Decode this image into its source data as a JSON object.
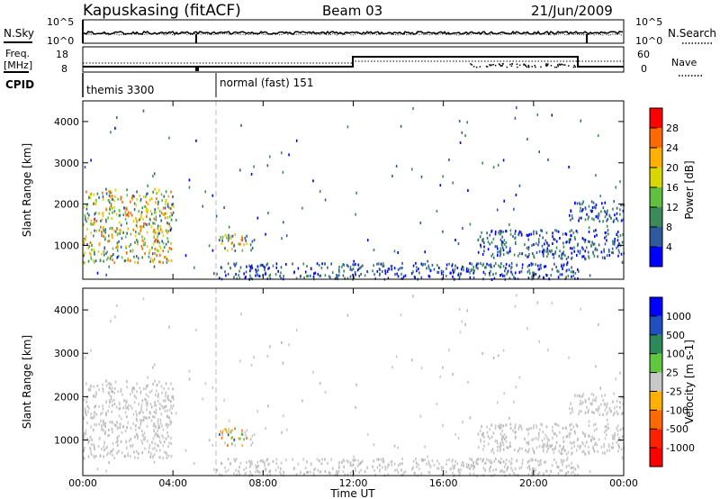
{
  "header": {
    "station": "Kapuskasing (fitACF)",
    "beam": "Beam 03",
    "date": "21/Jun/2009"
  },
  "top_panel": {
    "left_label": "N.Sky",
    "left_ticks": [
      "10^5",
      "10^0"
    ],
    "right_ticks": [
      "10^5",
      "10^0"
    ],
    "right_label": "N.Search"
  },
  "freq_panel": {
    "left_label_line1": "Freq.",
    "left_label_line2": "[MHz]",
    "left_ticks": [
      "18",
      "8"
    ],
    "right_ticks": [
      "60",
      "0"
    ],
    "right_label": "Nave"
  },
  "cpid_panel": {
    "label": "CPID",
    "modes": [
      "themis 3300",
      "normal (fast) 151"
    ]
  },
  "x_axis": {
    "title": "Time UT",
    "ticks": [
      "00:00",
      "04:00",
      "08:00",
      "12:00",
      "16:00",
      "20:00",
      "00:00"
    ]
  },
  "chart_data": [
    {
      "type": "heatmap",
      "name": "power",
      "ylabel": "Slant Range [km]",
      "xlim_hours": [
        0,
        24
      ],
      "ylim_km": [
        180,
        4500
      ],
      "yticks": [
        "4000",
        "3000",
        "2000",
        "1000"
      ],
      "ytick_values": [
        4000,
        3000,
        2000,
        1000
      ],
      "colorbar": {
        "label": "Power [dB]",
        "ticks": [
          "28",
          "24",
          "20",
          "16",
          "12",
          "8",
          "4"
        ],
        "colors": [
          "#ff0000",
          "#ff6a00",
          "#ffb000",
          "#d8d800",
          "#60c040",
          "#3a8a5a",
          "#305aa0",
          "#0000ff"
        ]
      },
      "echo_regions": [
        {
          "t0": 0.0,
          "t1": 4.0,
          "r0": 600,
          "r1": 2400,
          "level": "mixed-high"
        },
        {
          "t0": 6.0,
          "t1": 7.5,
          "r0": 900,
          "r1": 1300,
          "level": "mixed-high"
        },
        {
          "t0": 6.0,
          "t1": 22.0,
          "r0": 180,
          "r1": 600,
          "level": "low"
        },
        {
          "t0": 17.5,
          "t1": 24.0,
          "r0": 700,
          "r1": 1400,
          "level": "low"
        },
        {
          "t0": 21.5,
          "t1": 24.0,
          "r0": 1600,
          "r1": 2100,
          "level": "low"
        }
      ]
    },
    {
      "type": "heatmap",
      "name": "velocity",
      "ylabel": "Slant Range [km]",
      "xlim_hours": [
        0,
        24
      ],
      "ylim_km": [
        180,
        4500
      ],
      "yticks": [
        "4000",
        "3000",
        "2000",
        "1000"
      ],
      "ytick_values": [
        4000,
        3000,
        2000,
        1000
      ],
      "colorbar": {
        "label": "Velocity [m s-1]",
        "ticks": [
          "1000",
          "500",
          "100",
          "25",
          "-25",
          "-100",
          "-500",
          "-1000"
        ],
        "colors": [
          "#0000ff",
          "#2050c0",
          "#2a8a5a",
          "#60c840",
          "#c8c8c8",
          "#ffb000",
          "#ff6a00",
          "#ff2000",
          "#ff0000"
        ]
      },
      "echo_regions": [
        {
          "t0": 0.0,
          "t1": 4.0,
          "r0": 600,
          "r1": 2400,
          "level": "ground-scatter"
        },
        {
          "t0": 6.0,
          "t1": 7.5,
          "r0": 900,
          "r1": 1300,
          "level": "mixed"
        },
        {
          "t0": 6.0,
          "t1": 22.0,
          "r0": 180,
          "r1": 600,
          "level": "ground-scatter"
        },
        {
          "t0": 17.5,
          "t1": 24.0,
          "r0": 700,
          "r1": 1400,
          "level": "ground-scatter"
        },
        {
          "t0": 21.5,
          "t1": 24.0,
          "r0": 1600,
          "r1": 2100,
          "level": "ground-scatter"
        }
      ]
    }
  ]
}
